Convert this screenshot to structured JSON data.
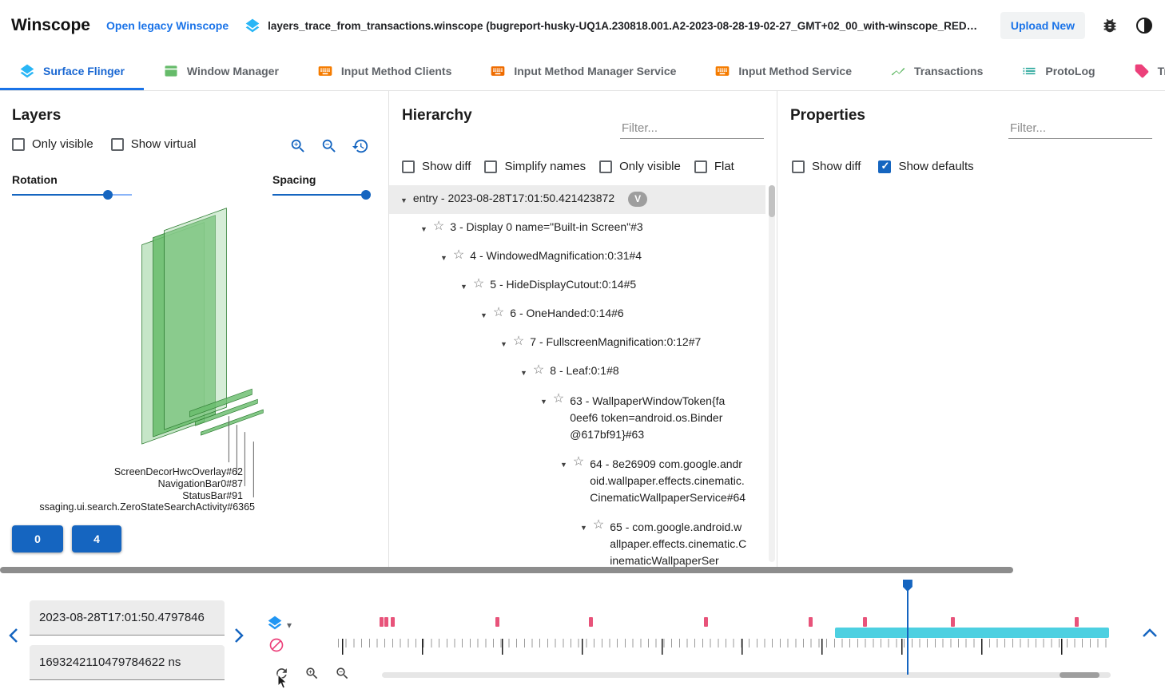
{
  "header": {
    "app_title": "Winscope",
    "legacy_link": "Open legacy Winscope",
    "trace_file": "layers_trace_from_transactions.winscope (bugreport-husky-UQ1A.230818.001.A2-2023-08-28-19-02-27_GMT+02_00_with-winscope_REDACTED.zip)",
    "upload_button": "Upload New"
  },
  "tabs": [
    {
      "label": "Surface Flinger"
    },
    {
      "label": "Window Manager"
    },
    {
      "label": "Input Method Clients"
    },
    {
      "label": "Input Method Manager Service"
    },
    {
      "label": "Input Method Service"
    },
    {
      "label": "Transactions"
    },
    {
      "label": "ProtoLog"
    },
    {
      "label": "Tra"
    }
  ],
  "layers": {
    "title": "Layers",
    "only_visible": "Only visible",
    "show_virtual": "Show virtual",
    "rotation_label": "Rotation",
    "spacing_label": "Spacing",
    "rotation_pct": 80,
    "spacing_pct": 96,
    "labels": [
      "ScreenDecorHwcOverlay#62",
      "NavigationBar0#87",
      "StatusBar#91",
      "ssaging.ui.search.ZeroStateSearchActivity#6365"
    ],
    "display_buttons": [
      "0",
      "4"
    ]
  },
  "hierarchy": {
    "title": "Hierarchy",
    "filter_placeholder": "Filter...",
    "options": [
      "Show diff",
      "Simplify names",
      "Only visible",
      "Flat"
    ],
    "tree": [
      {
        "label": "entry - 2023-08-28T17:01:50.421423872",
        "badge": "V"
      },
      {
        "label": "3 - Display 0 name=\"Built-in Screen\"#3"
      },
      {
        "label": "4 - WindowedMagnification:0:31#4"
      },
      {
        "label": "5 - HideDisplayCutout:0:14#5"
      },
      {
        "label": "6 - OneHanded:0:14#6"
      },
      {
        "label": "7 - FullscreenMagnification:0:12#7"
      },
      {
        "label": "8 - Leaf:0:1#8"
      },
      {
        "label": "63 - WallpaperWindowToken{fa0eef6 token=android.os.Binder@617bf91}#63"
      },
      {
        "label": "64 - 8e26909 com.google.android.wallpaper.effects.cinematic.CinematicWallpaperService#64"
      },
      {
        "label": "65 - com.google.android.wallpaper.effects.cinematic.CinematicWallpaperSer"
      }
    ]
  },
  "properties": {
    "title": "Properties",
    "filter_placeholder": "Filter...",
    "show_diff": "Show diff",
    "show_defaults": "Show defaults"
  },
  "timeline": {
    "human_time": "2023-08-28T17:01:50.4797846",
    "ns_time": "1693242110479784622 ns",
    "markers_pct": [
      5.7,
      6.3,
      7.1,
      20.6,
      32.7,
      47.5,
      61.0,
      68.0,
      79.4,
      95.4
    ],
    "marker_color": "#e8537a",
    "range_bar": {
      "start_pct": 64.4,
      "end_pct": 99.8,
      "color": "#4dd0e1"
    },
    "cursor_pct": 73.7
  },
  "colors": {
    "accent_blue": "#1565c0",
    "link_blue": "#1a73e8",
    "layer_green": "#66bb6a",
    "marker_pink": "#e8537a",
    "range_cyan": "#4dd0e1"
  }
}
